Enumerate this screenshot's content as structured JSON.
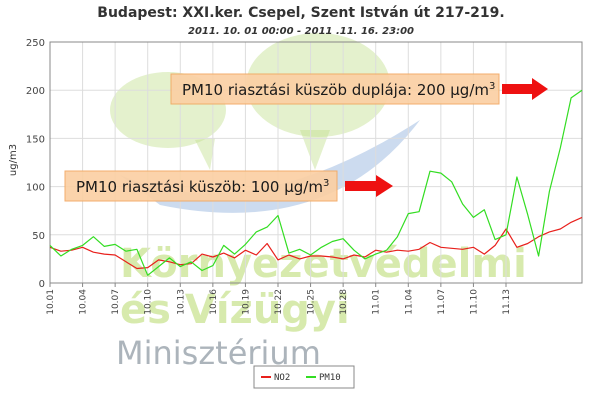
{
  "chart_data": {
    "type": "line",
    "title": "Budapest: XXI.ker. Csepel, Szent István út 217-219.",
    "subtitle": "2011. 10. 01 00:00 - 2011 .11. 16. 23:00",
    "ylabel": "ug/m3",
    "ylim": [
      0,
      250
    ],
    "yticks": [
      "0",
      "50",
      "100",
      "150",
      "200",
      "250"
    ],
    "xticks": [
      "10.01",
      "10.04",
      "10.07",
      "10.10",
      "10.13",
      "10.16",
      "10.19",
      "10.22",
      "10.25",
      "10.28",
      "11.01",
      "11.04",
      "11.07",
      "11.10",
      "11.13"
    ],
    "grid": true,
    "legend_position": "bottom",
    "series": [
      {
        "name": "NO2",
        "color": "#e8201c",
        "values": [
          37,
          33,
          34,
          37,
          32,
          30,
          29,
          22,
          15,
          16,
          24,
          22,
          19,
          20,
          30,
          27,
          31,
          26,
          34,
          29,
          41,
          24,
          29,
          25,
          28,
          28,
          27,
          25,
          29,
          27,
          34,
          32,
          34,
          33,
          35,
          42,
          37,
          36,
          35,
          37,
          30,
          39,
          56,
          37,
          41,
          48,
          53,
          56,
          63,
          68
        ]
      },
      {
        "name": "PM10",
        "color": "#33dd22",
        "values": [
          39,
          28,
          35,
          39,
          48,
          38,
          40,
          33,
          35,
          8,
          17,
          26,
          17,
          22,
          13,
          18,
          39,
          30,
          40,
          53,
          58,
          70,
          31,
          35,
          29,
          37,
          43,
          46,
          34,
          25,
          30,
          34,
          48,
          72,
          74,
          116,
          114,
          105,
          82,
          68,
          76,
          45,
          50,
          110,
          71,
          28,
          95,
          140,
          192,
          200
        ]
      }
    ],
    "annotations": [
      {
        "id": "threshold-double",
        "text": "PM10 riasztási küszöb duplája: 200 µg/m",
        "superscript": "3"
      },
      {
        "id": "threshold",
        "text": "PM10 riasztási küszöb: 100 µg/m",
        "superscript": "3"
      }
    ]
  },
  "watermark": {
    "line1": "Környezetvédelmi",
    "line2": "és Vízügyi",
    "line3": "Minisztérium",
    "colors": {
      "green": "#b6d96a",
      "blue": "#5b86c4",
      "gray": "#7f8c96"
    }
  }
}
